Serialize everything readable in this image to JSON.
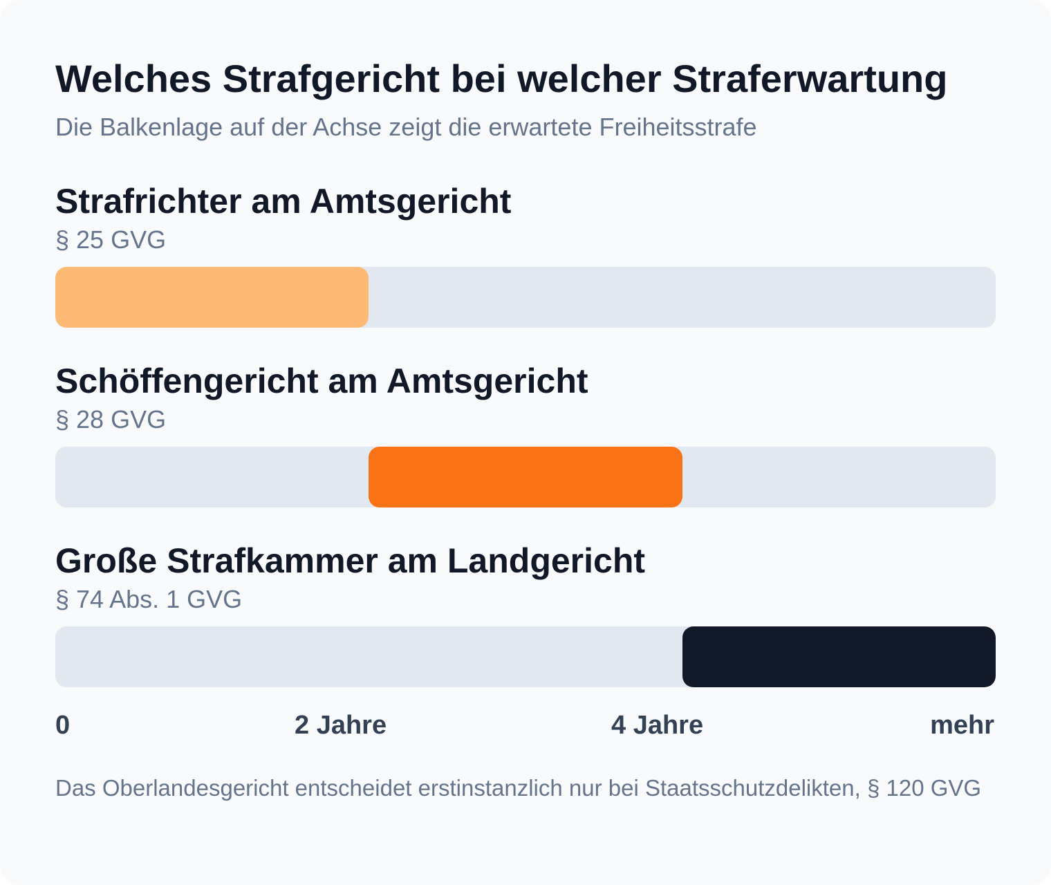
{
  "header": {
    "title": "Welches Strafgericht bei welcher Straferwartung",
    "subtitle": "Die Balkenlage auf der Achse zeigt die erwartete Freiheitsstrafe"
  },
  "footnote": "Das Oberlandesgericht entscheidet erstinstanzlich nur bei Staatsschutzdelikten, § 120 GVG",
  "chart_data": {
    "type": "bar",
    "orientation": "horizontal-range",
    "title": "Welches Strafgericht bei welcher Straferwartung",
    "subtitle": "Die Balkenlage auf der Achse zeigt die erwartete Freiheitsstrafe",
    "x_ticks": [
      "0",
      "2 Jahre",
      "4 Jahre",
      "mehr"
    ],
    "x_tick_values": [
      0,
      2,
      4,
      6
    ],
    "xlim": [
      0,
      6
    ],
    "grid": false,
    "series": [
      {
        "name": "Strafrichter am Amtsgericht",
        "law": "§ 25 GVG",
        "start": 0,
        "end": 2,
        "color": "#fdba74"
      },
      {
        "name": "Schöffengericht am Amtsgericht",
        "law": "§ 28 GVG",
        "start": 2,
        "end": 4,
        "color": "#f97316"
      },
      {
        "name": "Große Strafkammer am Landgericht",
        "law": "§ 74 Abs. 1 GVG",
        "start": 4,
        "end": 6,
        "color": "#111827"
      }
    ]
  }
}
